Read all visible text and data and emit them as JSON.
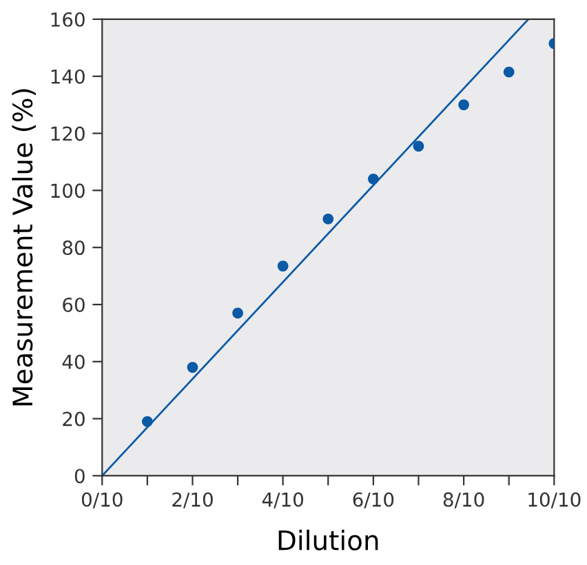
{
  "chart_data": {
    "type": "scatter",
    "xlabel": "Dilution",
    "ylabel": "Measurement Value (%)",
    "xlim": [
      0,
      1
    ],
    "ylim": [
      0,
      160
    ],
    "xticks": [
      {
        "value": 0,
        "label": "0/10"
      },
      {
        "value": 0.1,
        "label": null
      },
      {
        "value": 0.2,
        "label": "2/10"
      },
      {
        "value": 0.3,
        "label": null
      },
      {
        "value": 0.4,
        "label": "4/10"
      },
      {
        "value": 0.5,
        "label": null
      },
      {
        "value": 0.6,
        "label": "6/10"
      },
      {
        "value": 0.7,
        "label": null
      },
      {
        "value": 0.8,
        "label": "8/10"
      },
      {
        "value": 0.9,
        "label": null
      },
      {
        "value": 1,
        "label": "10/10"
      }
    ],
    "yticks": [
      0,
      20,
      40,
      60,
      80,
      100,
      120,
      140,
      160
    ],
    "grid": false,
    "marker": "circle",
    "series": [
      {
        "color": "#0b5aa6",
        "x": [
          0.1,
          0.2,
          0.3,
          0.4,
          0.5,
          0.6,
          0.7,
          0.8,
          0.9,
          1.0
        ],
        "values": [
          19,
          38,
          57,
          73.5,
          90,
          104,
          115.5,
          130,
          141.5,
          151.5
        ]
      },
      {
        "type": "line",
        "color": "#0b5aa6",
        "line_style": "solid",
        "marker": "none",
        "x": [
          0,
          0.943
        ],
        "values": [
          0,
          160
        ]
      }
    ]
  }
}
